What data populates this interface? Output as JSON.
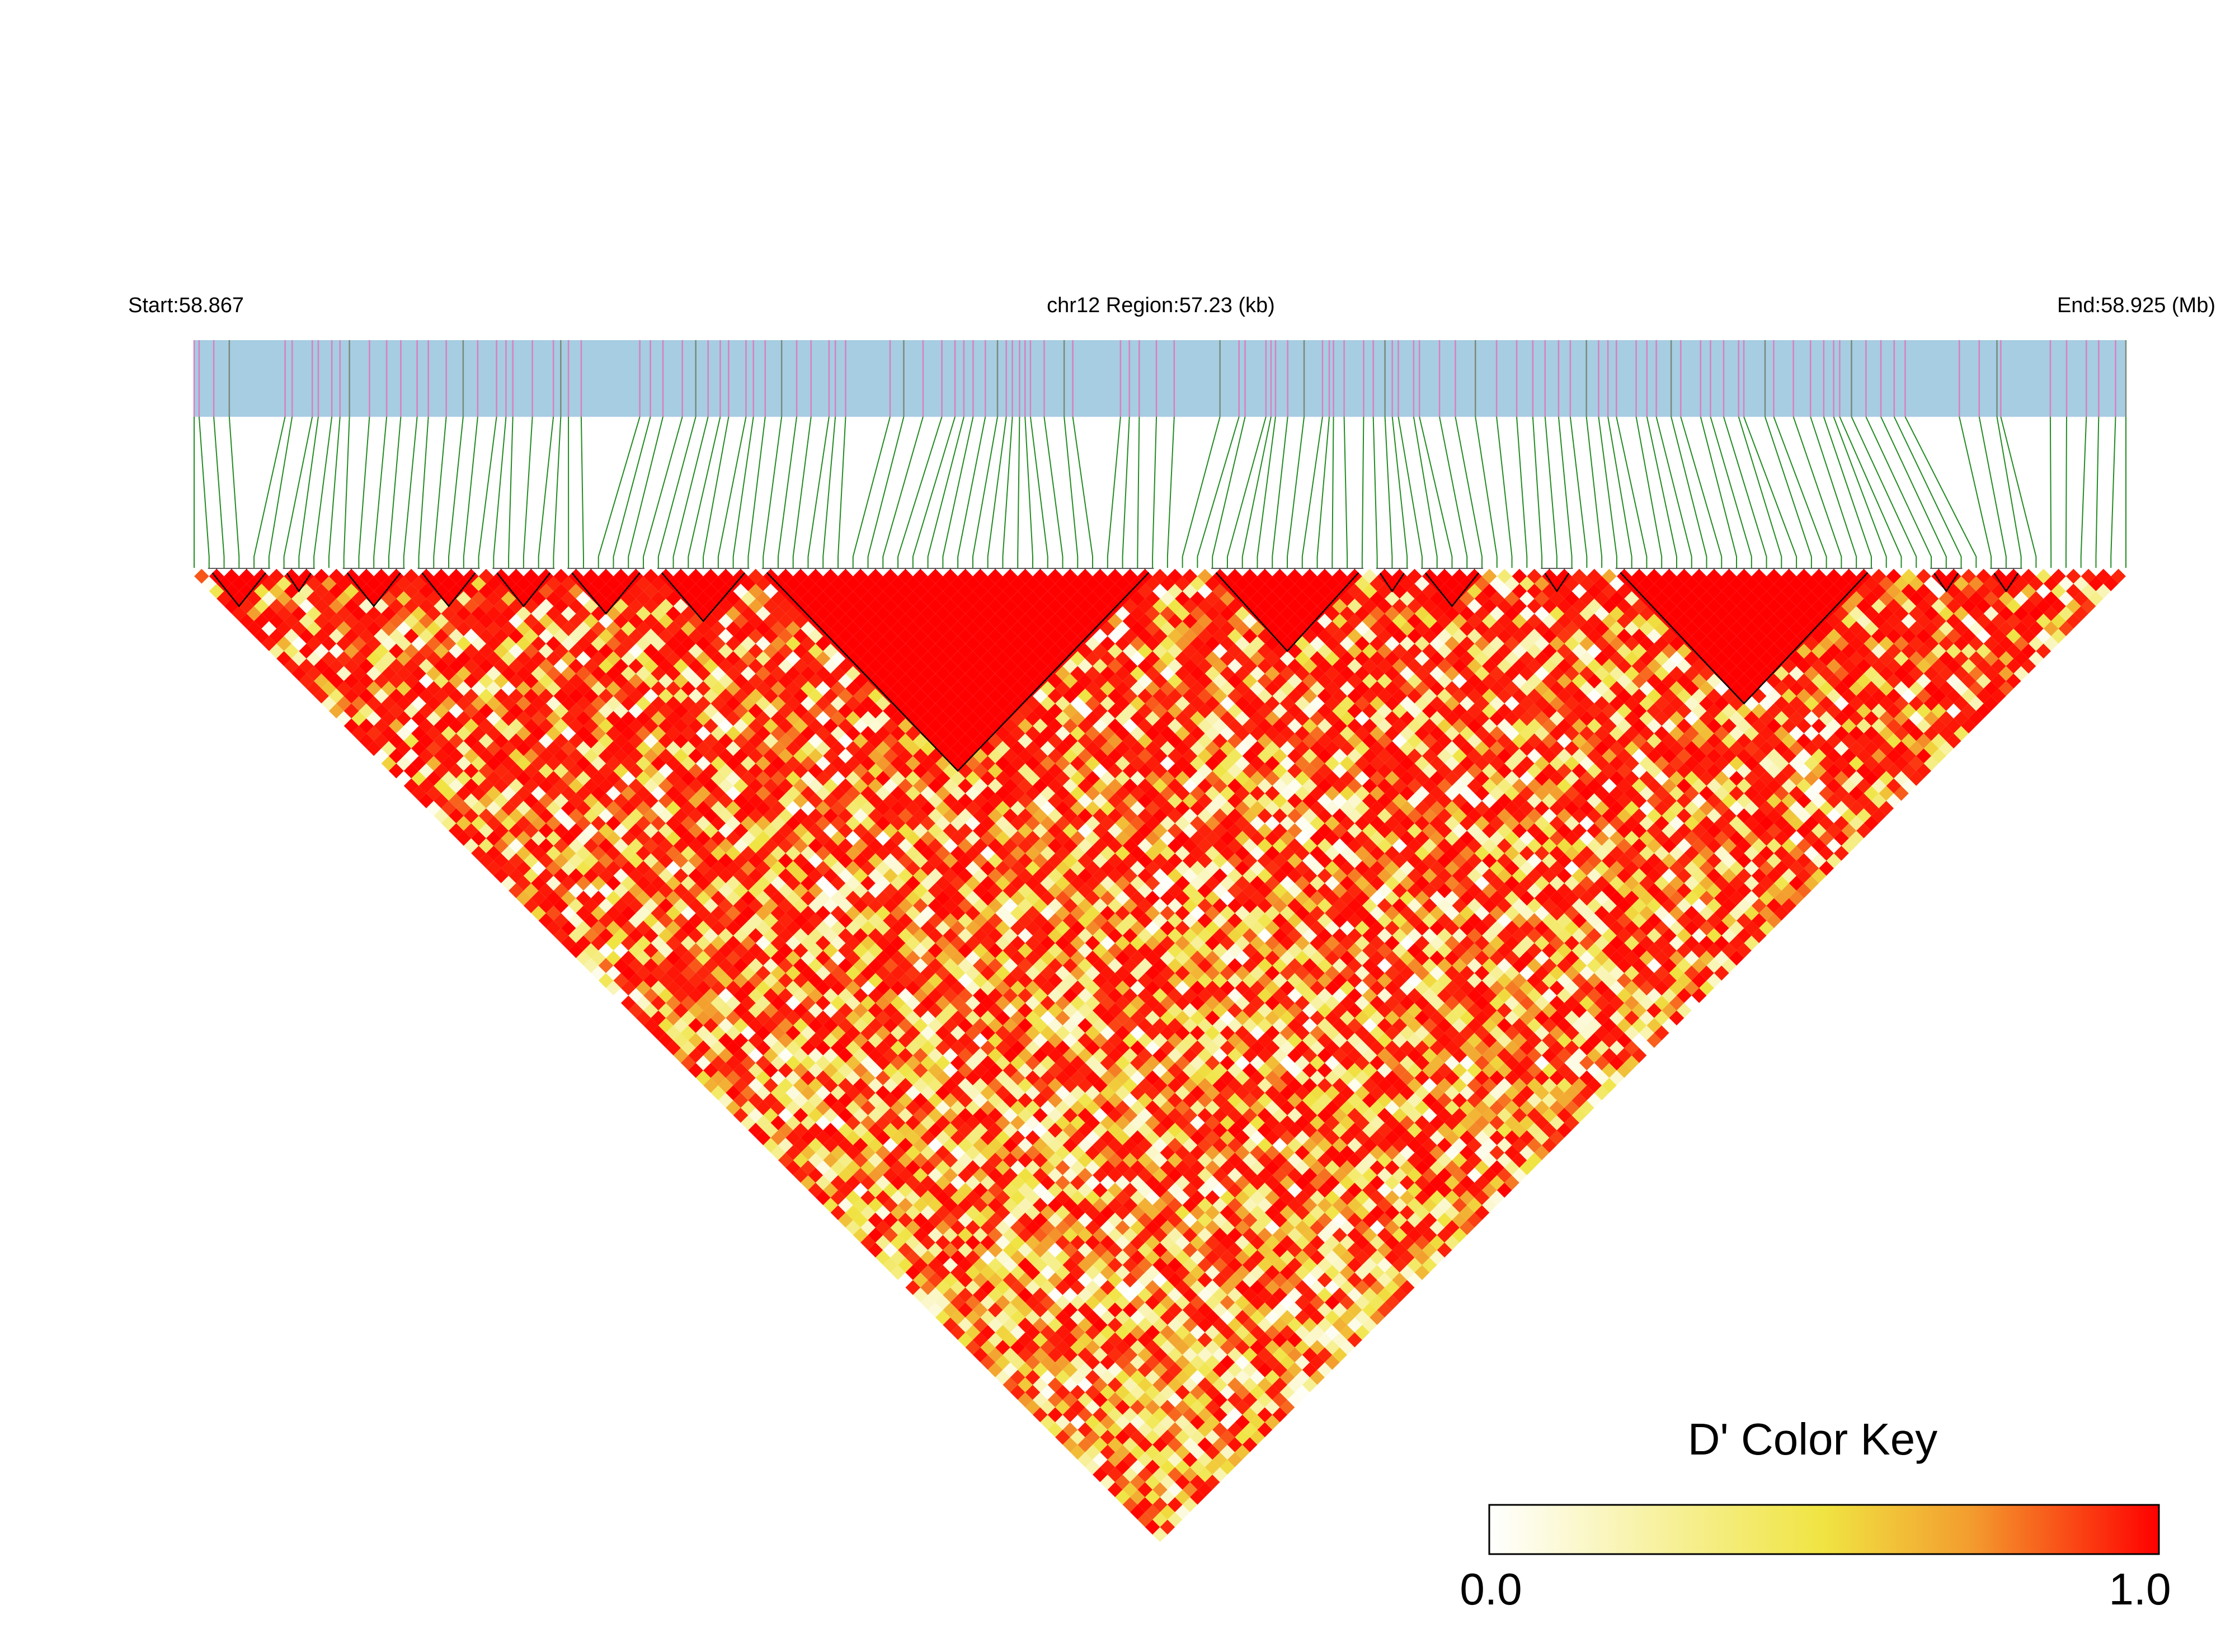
{
  "chart_data": {
    "type": "heatmap",
    "subtype": "linkage-disequilibrium-triangle",
    "start_label": "Start:58.867",
    "region_label": "chr12 Region:57.23 (kb)",
    "end_label": "End:58.925 (Mb)",
    "chromosome": "chr12",
    "start_mb": 58.867,
    "end_mb": 58.925,
    "region_kb": 57.23,
    "snp_count": 130,
    "colorbar": {
      "title": "D' Color Key",
      "min_label": "0.0",
      "max_label": "1.0",
      "min": 0.0,
      "max": 1.0,
      "stops": [
        {
          "value": 0.0,
          "color": "#ffffff"
        },
        {
          "value": 0.5,
          "color": "#f0e442"
        },
        {
          "value": 0.72,
          "color": "#f39c2e"
        },
        {
          "value": 1.0,
          "color": "#ff0000"
        }
      ]
    },
    "colors": {
      "gene_track": "#a6cde2",
      "snp_tick": "#d97fc2",
      "snp_tick_alt": "#7a8a7a",
      "connector": "#228b22",
      "block_outline": "#000000"
    },
    "haplotype_blocks_snp_index": [
      [
        1,
        5
      ],
      [
        6,
        8
      ],
      [
        10,
        14
      ],
      [
        15,
        19
      ],
      [
        20,
        24
      ],
      [
        25,
        30
      ],
      [
        31,
        37
      ],
      [
        38,
        64
      ],
      [
        68,
        78
      ],
      [
        79,
        81
      ],
      [
        82,
        86
      ],
      [
        90,
        92
      ],
      [
        95,
        112
      ],
      [
        116,
        118
      ],
      [
        120,
        122
      ]
    ],
    "dprime_pattern_note": "Pairwise D' values (0.0–1.0) generated by the script from haplotype_blocks: within-block pairs ≈ 1.0, other pairs decay with distance."
  }
}
